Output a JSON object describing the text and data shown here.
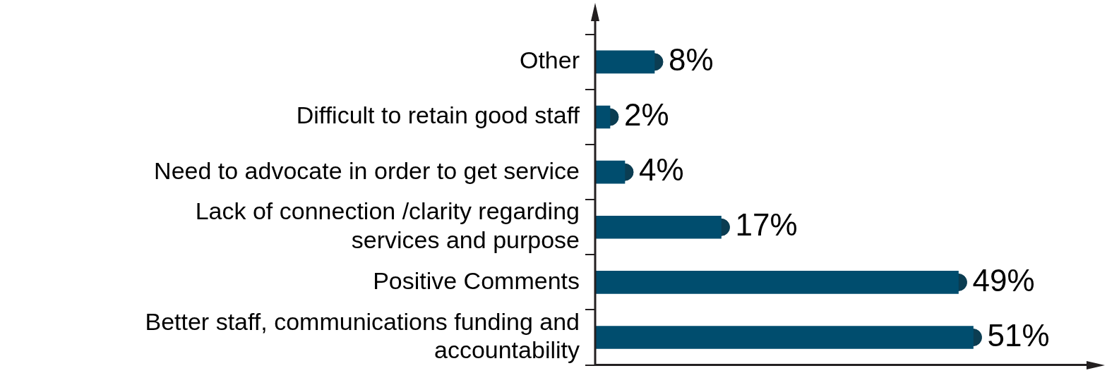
{
  "chart_data": {
    "type": "bar",
    "orientation": "horizontal",
    "categories": [
      "Other",
      "Difficult to retain good staff",
      "Need to advocate in order to get service",
      "Lack of connection /clarity regarding services and purpose",
      "Positive Comments",
      "Better staff, communications funding and accountability"
    ],
    "series": [
      {
        "color": "#004d6e",
        "values": [
          8,
          2,
          4,
          17,
          49,
          51
        ],
        "value_labels": [
          "8%",
          "2%",
          "4%",
          "17%",
          "49%",
          "51%"
        ]
      },
      {
        "type": "scatter",
        "color": "#0b3d52",
        "marker": "circle",
        "values": [
          8,
          2,
          4,
          17,
          49,
          51
        ]
      }
    ],
    "grid": false,
    "legend": false
  }
}
